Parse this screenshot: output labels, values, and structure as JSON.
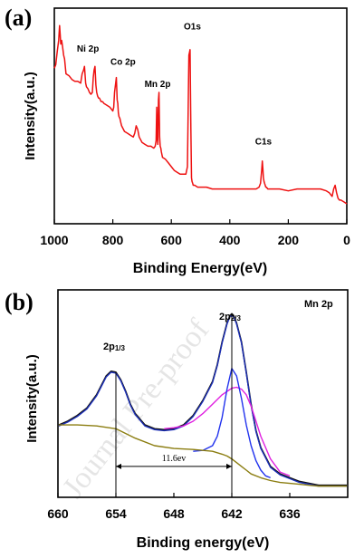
{
  "watermark": "Journal Pre-proof",
  "chart_data": [
    {
      "panel_label": "(a)",
      "type": "line",
      "title": "",
      "xlabel": "Binding Energy(eV)",
      "ylabel": "Intensity(a.u.)",
      "x_reversed": true,
      "xlim": [
        1000,
        0
      ],
      "xticks": [
        1000,
        800,
        600,
        400,
        200,
        0
      ],
      "ylim": [
        0,
        100
      ],
      "yticks_shown": false,
      "grid": false,
      "series": [
        {
          "color": "#ee1111",
          "x": [
            1000,
            995,
            990,
            985,
            982,
            980,
            978,
            975,
            972,
            968,
            965,
            960,
            950,
            940,
            930,
            920,
            910,
            905,
            900,
            897,
            893,
            890,
            885,
            880,
            875,
            870,
            867,
            864,
            861,
            858,
            855,
            852,
            849,
            846,
            843,
            840,
            835,
            830,
            820,
            810,
            800,
            797,
            794,
            791,
            788,
            785,
            783,
            781,
            779,
            776,
            773,
            770,
            760,
            750,
            740,
            730,
            725,
            720,
            715,
            710,
            700,
            690,
            680,
            670,
            660,
            655,
            652,
            650,
            648,
            646,
            644,
            642,
            640,
            638,
            636,
            634,
            630,
            620,
            610,
            600,
            590,
            580,
            570,
            560,
            550,
            545,
            540,
            536,
            533,
            531,
            529,
            527,
            525,
            520,
            510,
            500,
            480,
            460,
            440,
            420,
            400,
            380,
            360,
            340,
            320,
            310,
            300,
            295,
            291,
            289,
            287,
            285,
            283,
            281,
            279,
            277,
            275,
            270,
            260,
            250,
            230,
            200,
            170,
            150,
            130,
            110,
            90,
            70,
            60,
            55,
            50,
            45,
            40,
            35,
            30,
            25,
            20,
            10,
            0
          ],
          "y": [
            73,
            75,
            82,
            88,
            96,
            91,
            86,
            88,
            85,
            80,
            78,
            70,
            69,
            67,
            66,
            66,
            65,
            70,
            72,
            74,
            65,
            63,
            62,
            60,
            59,
            60,
            68,
            72,
            74,
            64,
            60,
            58,
            57,
            57,
            56,
            55,
            55,
            54,
            53,
            52,
            50,
            52,
            60,
            64,
            68,
            56,
            54,
            49,
            47,
            46,
            44,
            42,
            39,
            38,
            37,
            36,
            38,
            42,
            40,
            36,
            33,
            32,
            31,
            31,
            30,
            31,
            34,
            52,
            36,
            32,
            56,
            60,
            36,
            31,
            30,
            28,
            25,
            24,
            22,
            20,
            18,
            17,
            16,
            16,
            16,
            20,
            80,
            83,
            40,
            14,
            12,
            11,
            10,
            10,
            9,
            9,
            9,
            8,
            8,
            8,
            8,
            8,
            8,
            8,
            8,
            8,
            9,
            11,
            18,
            23,
            19,
            14,
            12,
            11,
            10,
            9,
            9,
            8,
            8,
            8,
            8,
            7,
            8,
            8,
            8,
            8,
            8,
            7,
            6,
            5,
            4,
            8,
            10,
            6,
            3,
            2,
            2,
            1,
            0
          ]
        }
      ],
      "annotations": [
        {
          "text": "Ni 2p",
          "x": 885,
          "y": 82
        },
        {
          "text": "Co 2p",
          "x": 765,
          "y": 75
        },
        {
          "text": "Mn 2p",
          "x": 647,
          "y": 63
        },
        {
          "text": "O1s",
          "x": 528,
          "y": 94
        },
        {
          "text": "C1s",
          "x": 285,
          "y": 32
        }
      ]
    },
    {
      "panel_label": "(b)",
      "type": "line",
      "title": "Mn 2p",
      "xlabel": "Binding energy(eV)",
      "ylabel": "Intensity(a.u.)",
      "x_reversed": true,
      "xlim": [
        660,
        630
      ],
      "xticks": [
        660,
        654,
        648,
        642,
        636
      ],
      "ylim": [
        0,
        100
      ],
      "yticks_shown": false,
      "grid": false,
      "series": [
        {
          "color": "#111111",
          "x": [
            660.5,
            659,
            658,
            657,
            656,
            655.5,
            655,
            654.5,
            654,
            653.5,
            653,
            652.5,
            652,
            651,
            650,
            649,
            648,
            647,
            646,
            645,
            644,
            643.5,
            643,
            642.5,
            642.2,
            642,
            641.8,
            641.5,
            641,
            640.5,
            640,
            639.5,
            639,
            638,
            637,
            636,
            635,
            634,
            633,
            632,
            631,
            630
          ],
          "y": [
            36,
            38,
            41,
            45,
            52,
            57,
            62,
            64.5,
            64,
            60,
            54,
            47,
            42,
            36,
            34,
            33.5,
            34,
            36,
            41,
            49,
            59,
            68,
            80,
            90,
            94,
            95,
            94,
            90,
            80,
            64,
            47,
            33,
            24,
            14,
            10,
            8,
            6,
            5,
            4,
            4,
            4,
            4
          ]
        },
        {
          "color": "#1c2fb8",
          "x": [
            660.5,
            659,
            658,
            657,
            656,
            655.5,
            655,
            654.5,
            654,
            653.5,
            653,
            652.5,
            652,
            651,
            650,
            649,
            648,
            647,
            646,
            645,
            644,
            643.5,
            643,
            642.5,
            642.2,
            642,
            641.8,
            641.5,
            641,
            640.5,
            640,
            639.5,
            639,
            638,
            637,
            636,
            635,
            634,
            633,
            632,
            631,
            630
          ],
          "y": [
            35.5,
            37.5,
            40.5,
            44.5,
            51.5,
            56.5,
            61.5,
            64,
            63.5,
            59.5,
            53.5,
            46.5,
            41.5,
            35.5,
            33.5,
            33,
            33.5,
            35.5,
            40.5,
            48.5,
            58.5,
            67.5,
            79.5,
            89.5,
            93.5,
            94,
            93.5,
            89.5,
            79.5,
            63.5,
            46.5,
            32.5,
            23.5,
            13.5,
            9.5,
            7.5,
            5.5,
            4.5,
            3.5,
            3.5,
            3.5,
            3.5
          ]
        },
        {
          "color": "#e020e0",
          "x": [
            649,
            648,
            647,
            646,
            645,
            644,
            643,
            642,
            641.5,
            641,
            640.5,
            640,
            639.5,
            639,
            638,
            637,
            636
          ],
          "y": [
            34,
            34.5,
            35.5,
            38,
            42,
            47,
            52,
            55.5,
            56,
            55,
            52,
            46,
            38,
            30,
            18,
            11,
            9
          ]
        },
        {
          "color": "#2233ee",
          "x": [
            646,
            645,
            644,
            643.5,
            643,
            642.5,
            642,
            641.5,
            641,
            640.5,
            640,
            639.5,
            639,
            638.5,
            638
          ],
          "y": [
            22,
            22.5,
            25,
            30,
            40,
            55,
            66,
            62,
            50,
            36,
            25,
            17,
            12,
            9,
            8
          ]
        },
        {
          "color": "#8b7d10",
          "x": [
            660.5,
            658,
            656,
            654,
            652,
            650,
            648,
            646,
            645,
            644,
            643,
            642.5,
            642,
            641.5,
            641,
            640.5,
            640,
            639,
            638,
            637,
            636,
            635,
            634,
            633,
            632,
            631,
            630
          ],
          "y": [
            36,
            36,
            35.5,
            34,
            29,
            25,
            23.5,
            23,
            22.5,
            22,
            20.5,
            19.5,
            18,
            16,
            14,
            12,
            10,
            8,
            6.5,
            5.5,
            5,
            4.5,
            4,
            3.5,
            3.5,
            3.5,
            3.5
          ]
        }
      ],
      "annotations": [
        {
          "text": "2p",
          "sub": "1/3",
          "x": 654
        },
        {
          "text": "2p",
          "sub": "2/3",
          "x": 642
        },
        {
          "text": "11.6ev",
          "x": 648
        }
      ],
      "markers": {
        "vlines_x": [
          654,
          642
        ],
        "separation": {
          "from": 654,
          "to": 642,
          "y": 14
        }
      }
    }
  ]
}
